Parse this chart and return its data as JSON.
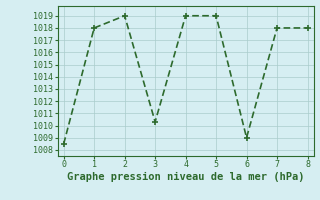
{
  "x": [
    0,
    1,
    2,
    3,
    4,
    5,
    6,
    7,
    8
  ],
  "y": [
    1008.5,
    1018.0,
    1019.0,
    1010.3,
    1019.0,
    1019.0,
    1009.0,
    1018.0,
    1018.0
  ],
  "line_color": "#2d6a2d",
  "marker": "+",
  "marker_size": 4,
  "xlim": [
    -0.2,
    8.2
  ],
  "ylim": [
    1007.5,
    1019.8
  ],
  "yticks": [
    1008,
    1009,
    1010,
    1011,
    1012,
    1013,
    1014,
    1015,
    1016,
    1017,
    1018,
    1019
  ],
  "xticks": [
    0,
    1,
    2,
    3,
    4,
    5,
    6,
    7,
    8
  ],
  "xlabel": "Graphe pression niveau de la mer (hPa)",
  "xlabel_fontsize": 7.5,
  "background_color": "#d6eef2",
  "grid_color": "#aacccc",
  "tick_fontsize": 6,
  "line_width": 1.2
}
